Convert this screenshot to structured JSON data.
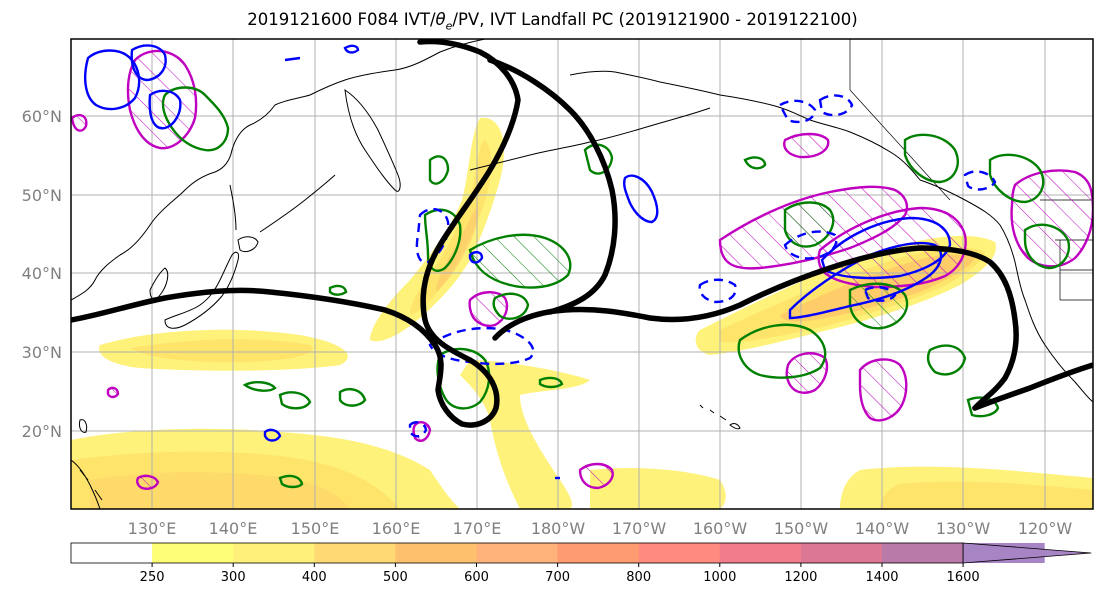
{
  "title": {
    "prefix": "2019121600 F084 IVT/",
    "theta": "θ",
    "theta_sub": "e",
    "suffix": "/PV, IVT Landfall PC (2019121900 - 2019122100)"
  },
  "map": {
    "lat_labels": [
      "20°N",
      "30°N",
      "40°N",
      "50°N",
      "60°N"
    ],
    "lon_labels": [
      "130°E",
      "140°E",
      "150°E",
      "160°E",
      "170°E",
      "180°W",
      "170°W",
      "160°W",
      "150°W",
      "140°W",
      "130°W",
      "120°W"
    ],
    "colors": {
      "ivt_low": "#fff27a",
      "ivt_mid": "#ffe46b",
      "ivt_high": "#fdc66a",
      "theta_e_positive": "#008000",
      "pv_positive": "#0000ff",
      "pv_negative_dashed": "#0000ff",
      "magenta_hatched": "#c000c0",
      "landfall_pc_contour": "#000000",
      "coastline": "#000000"
    }
  },
  "colorbar": {
    "ticks": [
      "250",
      "300",
      "400",
      "500",
      "600",
      "700",
      "800",
      "1000",
      "1200",
      "1400",
      "1600"
    ],
    "colors": [
      "#ffffff",
      "#ffff77",
      "#fff07a",
      "#ffd973",
      "#fdc06c",
      "#ffb27a",
      "#ff9b70",
      "#ff8a80",
      "#f07c8c",
      "#dc7896",
      "#b97aaa",
      "#a784c4"
    ]
  }
}
